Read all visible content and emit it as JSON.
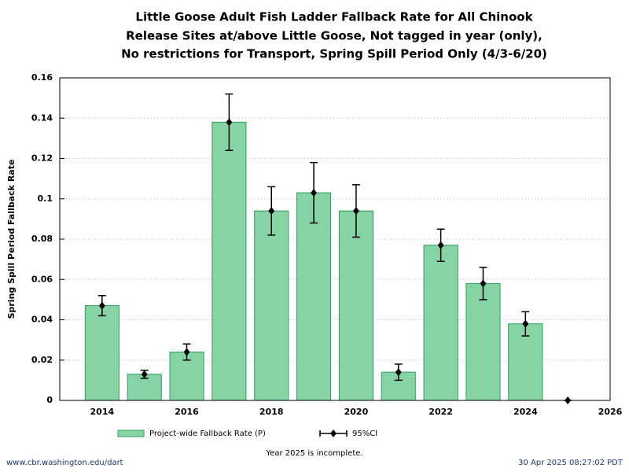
{
  "chart_data": {
    "type": "bar",
    "title": [
      "Little Goose Adult Fish Ladder Fallback Rate for All Chinook",
      "Release Sites at/above Little Goose, Not tagged in year (only),",
      "No restrictions for Transport, Spring Spill Period Only (4/3-6/20)"
    ],
    "y_label": "Spring Spill Period Fallback Rate",
    "x": [
      2014,
      2015,
      2016,
      2017,
      2018,
      2019,
      2020,
      2021,
      2022,
      2023,
      2024,
      2025
    ],
    "series": [
      {
        "name": "Project-wide Fallback Rate (P)",
        "color": "#86d4a6",
        "edge_color": "#2e9e5e",
        "values": [
          0.047,
          0.013,
          0.024,
          0.138,
          0.094,
          0.103,
          0.094,
          0.014,
          0.077,
          0.058,
          0.038,
          0
        ]
      },
      {
        "name": "95%CI",
        "color": "#000000",
        "lower": [
          0.042,
          0.011,
          0.02,
          0.124,
          0.082,
          0.088,
          0.081,
          0.01,
          0.069,
          0.05,
          0.032,
          0
        ],
        "upper": [
          0.052,
          0.015,
          0.028,
          0.152,
          0.106,
          0.118,
          0.107,
          0.018,
          0.085,
          0.066,
          0.044,
          0
        ]
      }
    ],
    "xlim": [
      2013,
      2026
    ],
    "xticks": [
      2014,
      2016,
      2018,
      2020,
      2022,
      2024,
      2026
    ],
    "ylim": [
      0,
      0.16
    ],
    "yticks": [
      0,
      0.02,
      0.04,
      0.06,
      0.08,
      0.1,
      0.12,
      0.14,
      0.16
    ],
    "grid": true,
    "note": "Year 2025 is incomplete.",
    "source": "www.cbr.washington.edu/dart",
    "timestamp": "30 Apr 2025 08:27:02 PDT"
  }
}
